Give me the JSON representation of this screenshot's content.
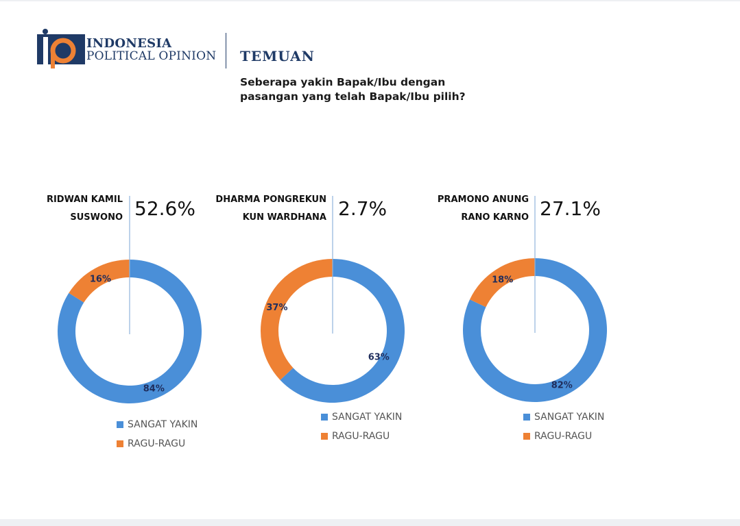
{
  "brand": {
    "line1": "INDONESIA",
    "line2": "POLITICAL OPINION"
  },
  "header": {
    "section": "TEMUAN",
    "question_line1": "Seberapa yakin Bapak/Ibu dengan",
    "question_line2": "pasangan yang telah Bapak/Ibu pilih?"
  },
  "colors": {
    "sangat_yakin": "#4a8fd8",
    "ragu_ragu": "#ee8134",
    "brand_navy": "#1f3a66",
    "data_label": "#1f2d5c"
  },
  "chart_data": [
    {
      "type": "pie",
      "candidate_line1": "RIDWAN KAMIL",
      "candidate_line2": "SUSWONO",
      "vote_share": "52.6%",
      "categories": [
        "SANGAT YAKIN",
        "RAGU-RAGU"
      ],
      "values": [
        84,
        16
      ],
      "value_labels": [
        "84%",
        "16%"
      ],
      "legend": [
        "SANGAT YAKIN",
        "RAGU-RAGU"
      ]
    },
    {
      "type": "pie",
      "candidate_line1": "DHARMA PONGREKUN",
      "candidate_line2": "KUN WARDHANA",
      "vote_share": "2.7%",
      "categories": [
        "SANGAT YAKIN",
        "RAGU-RAGU"
      ],
      "values": [
        63,
        37
      ],
      "value_labels": [
        "63%",
        "37%"
      ],
      "legend": [
        "SANGAT YAKIN",
        "RAGU-RAGU"
      ]
    },
    {
      "type": "pie",
      "candidate_line1": "PRAMONO ANUNG",
      "candidate_line2": "RANO KARNO",
      "vote_share": "27.1%",
      "categories": [
        "SANGAT YAKIN",
        "RAGU-RAGU"
      ],
      "values": [
        82,
        18
      ],
      "value_labels": [
        "82%",
        "18%"
      ],
      "legend": [
        "SANGAT YAKIN",
        "RAGU-RAGU"
      ]
    }
  ]
}
